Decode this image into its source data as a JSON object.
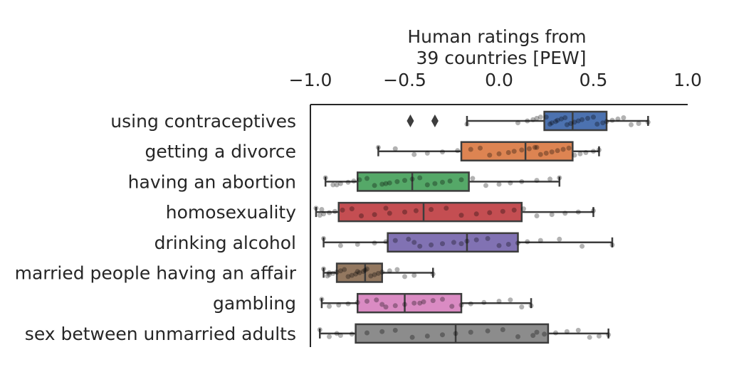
{
  "chart_data": {
    "type": "box",
    "title_lines": [
      "Human ratings from",
      "39 countries [PEW]"
    ],
    "xlim": [
      -1.0,
      1.0
    ],
    "x_axis_position": "top",
    "xticks": [
      -1.0,
      -0.5,
      0.0,
      0.5,
      1.0
    ],
    "xtick_labels": [
      "−1.0",
      "−0.5",
      "0.0",
      "0.5",
      "1.0"
    ],
    "grid": false,
    "categories": [
      "using contraceptives",
      "getting a divorce",
      "having an abortion",
      "homosexuality",
      "drinking alcohol",
      "married people having an affair",
      "gambling",
      "sex between unmarried adults"
    ],
    "boxes": [
      {
        "color": "#4c72b0",
        "whisker_low": -0.17,
        "q1": 0.24,
        "median": 0.39,
        "q3": 0.57,
        "whisker_high": 0.79,
        "outliers": [
          -0.47,
          -0.34
        ]
      },
      {
        "color": "#dd8452",
        "whisker_low": -0.64,
        "q1": -0.2,
        "median": 0.14,
        "q3": 0.39,
        "whisker_high": 0.53,
        "outliers": []
      },
      {
        "color": "#55a868",
        "whisker_low": -0.92,
        "q1": -0.75,
        "median": -0.46,
        "q3": -0.16,
        "whisker_high": 0.32,
        "outliers": []
      },
      {
        "color": "#c44e52",
        "whisker_low": -0.97,
        "q1": -0.85,
        "median": -0.4,
        "q3": 0.12,
        "whisker_high": 0.5,
        "outliers": []
      },
      {
        "color": "#8172b3",
        "whisker_low": -0.93,
        "q1": -0.59,
        "median": -0.17,
        "q3": 0.1,
        "whisker_high": 0.6,
        "outliers": []
      },
      {
        "color": "#937860",
        "whisker_low": -0.93,
        "q1": -0.86,
        "median": -0.71,
        "q3": -0.62,
        "whisker_high": -0.35,
        "outliers": []
      },
      {
        "color": "#da8bc3",
        "whisker_low": -0.94,
        "q1": -0.75,
        "median": -0.5,
        "q3": -0.2,
        "whisker_high": 0.17,
        "outliers": []
      },
      {
        "color": "#8c8c8c",
        "whisker_low": -0.95,
        "q1": -0.76,
        "median": -0.23,
        "q3": 0.26,
        "whisker_high": 0.58,
        "outliers": []
      }
    ],
    "points": [
      [
        0.25,
        0.27,
        0.28,
        0.3,
        0.31,
        0.33,
        0.35,
        0.36,
        0.38,
        0.4,
        0.42,
        0.44,
        0.47,
        0.5,
        0.52,
        0.55,
        0.57,
        0.6,
        0.63,
        0.66,
        0.7,
        0.74,
        0.79,
        0.15,
        0.18,
        0.2,
        0.22,
        -0.17,
        0.1
      ],
      [
        -0.64,
        -0.45,
        -0.38,
        -0.3,
        -0.22,
        -0.15,
        -0.1,
        -0.05,
        0.0,
        0.05,
        0.08,
        0.12,
        0.16,
        0.19,
        0.22,
        0.25,
        0.28,
        0.31,
        0.34,
        0.37,
        0.4,
        0.43,
        0.46,
        0.5,
        0.53,
        -0.55,
        0.2
      ],
      [
        -0.92,
        -0.88,
        -0.84,
        -0.8,
        -0.77,
        -0.74,
        -0.7,
        -0.66,
        -0.62,
        -0.58,
        -0.54,
        -0.5,
        -0.46,
        -0.42,
        -0.38,
        -0.34,
        -0.3,
        -0.26,
        -0.2,
        -0.14,
        -0.07,
        0.0,
        0.06,
        0.12,
        0.2,
        0.27,
        0.32,
        -0.86,
        -0.6
      ],
      [
        -0.97,
        -0.95,
        -0.93,
        -0.9,
        -0.87,
        -0.83,
        -0.78,
        -0.73,
        -0.66,
        -0.58,
        -0.5,
        -0.44,
        -0.36,
        -0.28,
        -0.2,
        -0.12,
        -0.05,
        0.02,
        0.08,
        0.13,
        0.2,
        0.28,
        0.35,
        0.42,
        0.5,
        -0.94,
        -0.6
      ],
      [
        -0.93,
        -0.84,
        -0.75,
        -0.66,
        -0.6,
        -0.55,
        -0.48,
        -0.42,
        -0.36,
        -0.3,
        -0.24,
        -0.17,
        -0.12,
        -0.06,
        0.0,
        0.05,
        0.1,
        0.15,
        0.22,
        0.32,
        0.44,
        0.6,
        -0.2,
        -0.45
      ],
      [
        -0.93,
        -0.91,
        -0.9,
        -0.88,
        -0.86,
        -0.84,
        -0.82,
        -0.8,
        -0.78,
        -0.76,
        -0.74,
        -0.72,
        -0.71,
        -0.7,
        -0.68,
        -0.66,
        -0.64,
        -0.62,
        -0.58,
        -0.54,
        -0.5,
        -0.45,
        -0.35,
        -0.9,
        -0.75
      ],
      [
        -0.94,
        -0.9,
        -0.85,
        -0.8,
        -0.75,
        -0.7,
        -0.65,
        -0.6,
        -0.55,
        -0.5,
        -0.45,
        -0.4,
        -0.35,
        -0.3,
        -0.25,
        -0.2,
        -0.15,
        -0.08,
        0.0,
        0.06,
        0.12,
        0.17,
        -0.62,
        -0.42
      ],
      [
        -0.95,
        -0.9,
        -0.84,
        -0.78,
        -0.7,
        -0.62,
        -0.55,
        -0.46,
        -0.38,
        -0.3,
        -0.23,
        -0.15,
        -0.06,
        0.02,
        0.1,
        0.18,
        0.24,
        0.3,
        0.36,
        0.42,
        0.48,
        0.53,
        0.58,
        -0.86,
        0.2
      ]
    ]
  }
}
